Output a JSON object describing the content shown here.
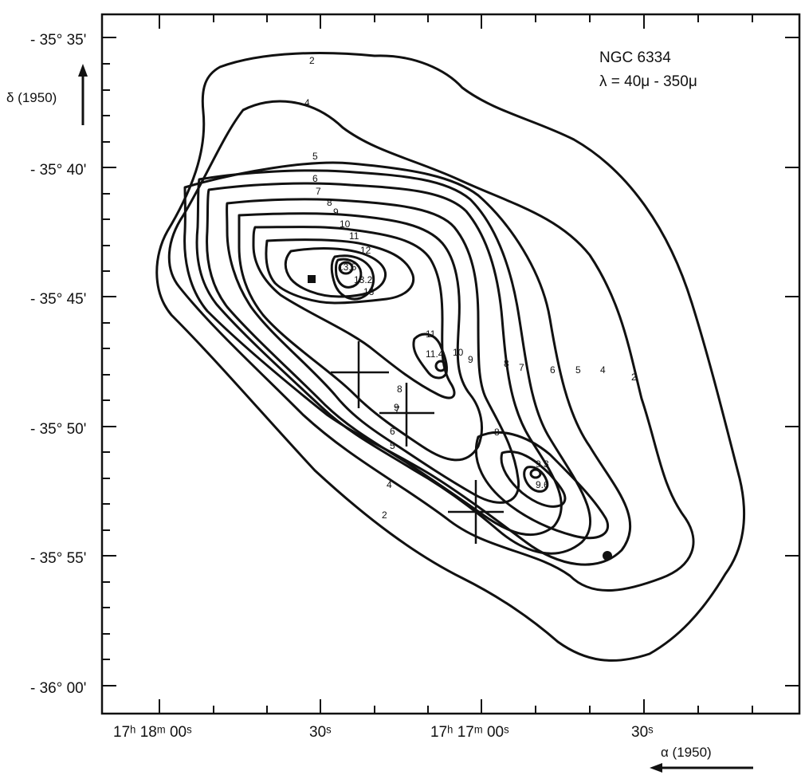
{
  "figure": {
    "title_line1": "NGC 6334",
    "title_line2": "λ = 40μ - 350μ",
    "dec_axis_label": "δ (1950)",
    "ra_axis_label": "α (1950)"
  },
  "dec_ticks": [
    "- 35° 35'",
    "- 35° 40'",
    "- 35° 45'",
    "- 35° 50'",
    "- 35° 55'",
    "- 36° 00'"
  ],
  "ra_ticks": [
    "17ʰ 18ᵐ 00ˢ",
    "30ˢ",
    "17ʰ 17ᵐ 00ˢ",
    "30ˢ"
  ],
  "contour_labels": [
    "2",
    "4",
    "5",
    "6",
    "7",
    "8",
    "9",
    "10",
    "11",
    "12",
    "13.5",
    "13.2",
    "13",
    "11",
    "11.4",
    "10",
    "9",
    "8",
    "7",
    "6",
    "5",
    "4",
    "2",
    "8",
    "9",
    "9.3",
    "9.6",
    "8",
    "7",
    "6",
    "5",
    "4",
    "2"
  ],
  "colors": {
    "ink": "#111111",
    "background": "#ffffff"
  }
}
